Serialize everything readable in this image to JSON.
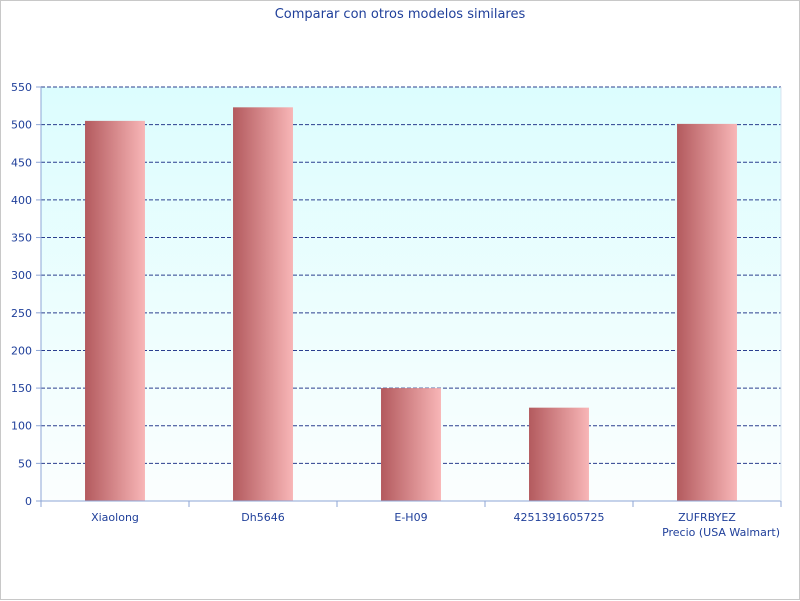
{
  "chart_data": {
    "type": "bar",
    "title": "Comparar con otros modelos similares",
    "xlabel": "Precio (USA Walmart)",
    "ylabel": "",
    "categories": [
      "Xiaolong",
      "Dh5646",
      "E-H09",
      "4251391605725",
      "ZUFRBYEZ"
    ],
    "values": [
      505,
      523,
      150,
      124,
      501
    ],
    "ylim": [
      0,
      550
    ],
    "yticks": [
      0,
      50,
      100,
      150,
      200,
      250,
      300,
      350,
      400,
      450,
      500,
      550
    ],
    "grid": true,
    "legend": "none"
  },
  "colors": {
    "bar_dark": "#b35a5e",
    "bar_light": "#f8b6b7",
    "plot_bg_top": "#dcfdfe",
    "plot_bg_bottom": "#fbfefe",
    "grid": "#2b3f8f",
    "axis": "#8da6d6",
    "text": "#1f3f9a"
  }
}
